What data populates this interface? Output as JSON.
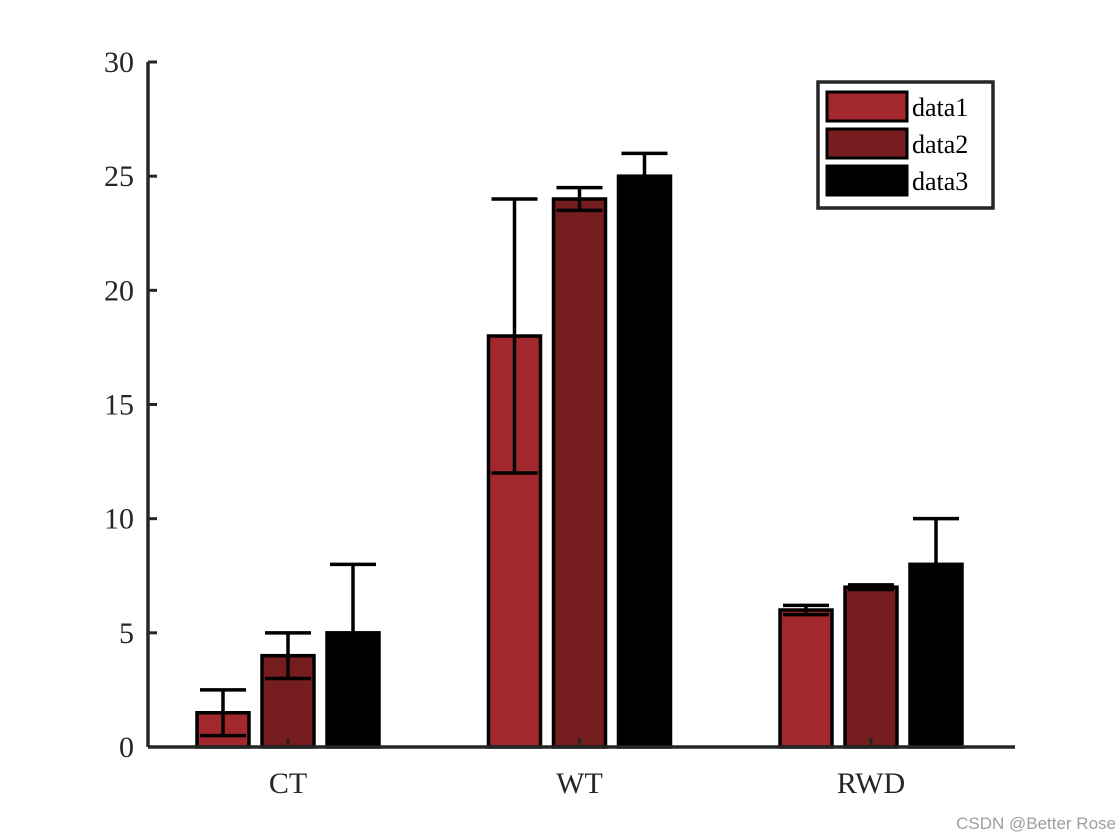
{
  "chart_data": {
    "type": "bar",
    "categories": [
      "CT",
      "WT",
      "RWD"
    ],
    "series": [
      {
        "name": "data1",
        "color": "#A3282D",
        "values": [
          1.5,
          18,
          6
        ],
        "errors": [
          1,
          6,
          0.2
        ]
      },
      {
        "name": "data2",
        "color": "#761E1F",
        "values": [
          4,
          24,
          7
        ],
        "errors": [
          1,
          0.5,
          0.1
        ]
      },
      {
        "name": "data3",
        "color": "#000000",
        "values": [
          5,
          25,
          8
        ],
        "errors": [
          3,
          1,
          2
        ]
      }
    ],
    "ylim": [
      0,
      30
    ],
    "yticks": [
      0,
      5,
      10,
      15,
      20,
      25,
      30
    ],
    "title": "",
    "xlabel": "",
    "ylabel": "",
    "legend_position": "top-right",
    "grid": false,
    "axis_color": "#262626",
    "edge_color": "#000000"
  },
  "watermark": "CSDN @Better Rose"
}
